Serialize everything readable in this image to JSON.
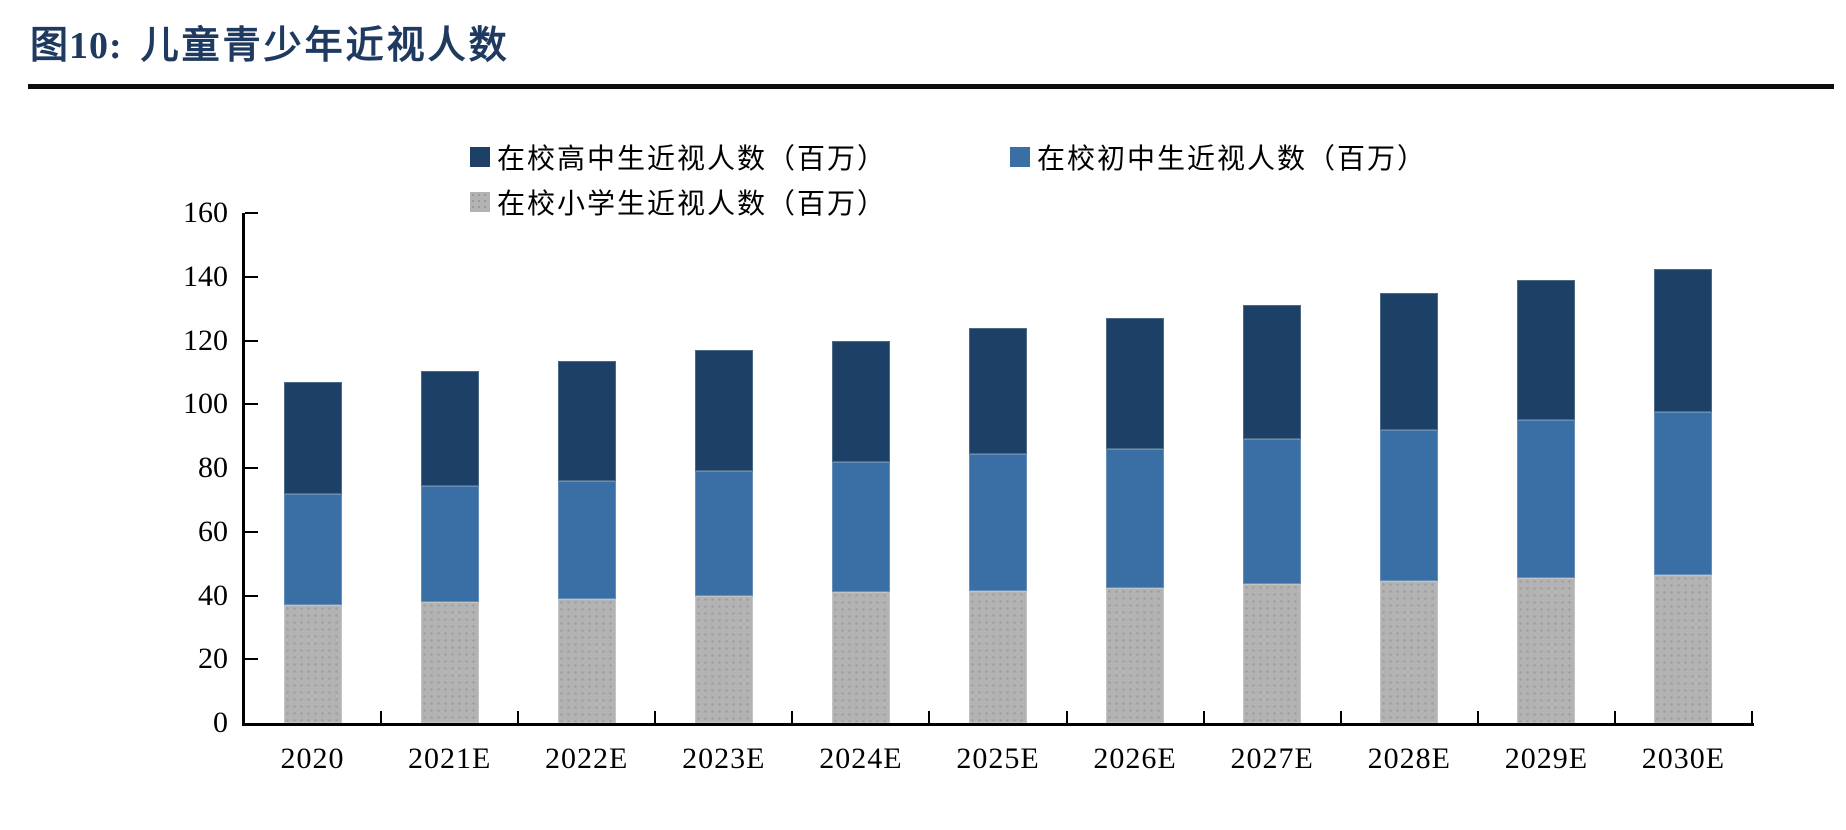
{
  "figure": {
    "label": "图10:",
    "title": "儿童青少年近视人数"
  },
  "colors": {
    "title_text": "#1f3a60",
    "title_rule": "#0d0d0d",
    "axis": "#000000",
    "senior_bar": "#1c4066",
    "junior_bar": "#3a6fa5",
    "primary_bar": "#b3b3b3"
  },
  "chart_data": {
    "type": "bar",
    "stacked": true,
    "title": "",
    "xlabel": "",
    "ylabel": "",
    "ylim": [
      0,
      160
    ],
    "y_ticks": [
      0,
      20,
      40,
      60,
      80,
      100,
      120,
      140,
      160
    ],
    "grid": false,
    "legend_position": "top",
    "categories": [
      "2020",
      "2021E",
      "2022E",
      "2023E",
      "2024E",
      "2025E",
      "2026E",
      "2027E",
      "2028E",
      "2029E",
      "2030E"
    ],
    "series": [
      {
        "key": "primary",
        "name": "在校小学生近视人数（百万）",
        "color": "#b3b3b3",
        "pattern": "dots",
        "values": [
          37,
          38,
          39,
          40,
          41,
          41.5,
          42.5,
          43.5,
          44.5,
          45.5,
          46.5
        ]
      },
      {
        "key": "junior",
        "name": "在校初中生近视人数（百万）",
        "color": "#3a6fa5",
        "pattern": "solid",
        "values": [
          35,
          36.5,
          37,
          39,
          41,
          43,
          43.5,
          45.5,
          47.5,
          49.5,
          51
        ]
      },
      {
        "key": "senior",
        "name": "在校高中生近视人数（百万）",
        "color": "#1c4066",
        "pattern": "solid",
        "values": [
          35,
          36,
          37.5,
          38,
          38,
          39.5,
          41,
          42,
          43,
          44,
          45
        ]
      }
    ],
    "totals": [
      107,
      110.5,
      113.5,
      117,
      120,
      124,
      127,
      131,
      135,
      139,
      142.5
    ]
  }
}
